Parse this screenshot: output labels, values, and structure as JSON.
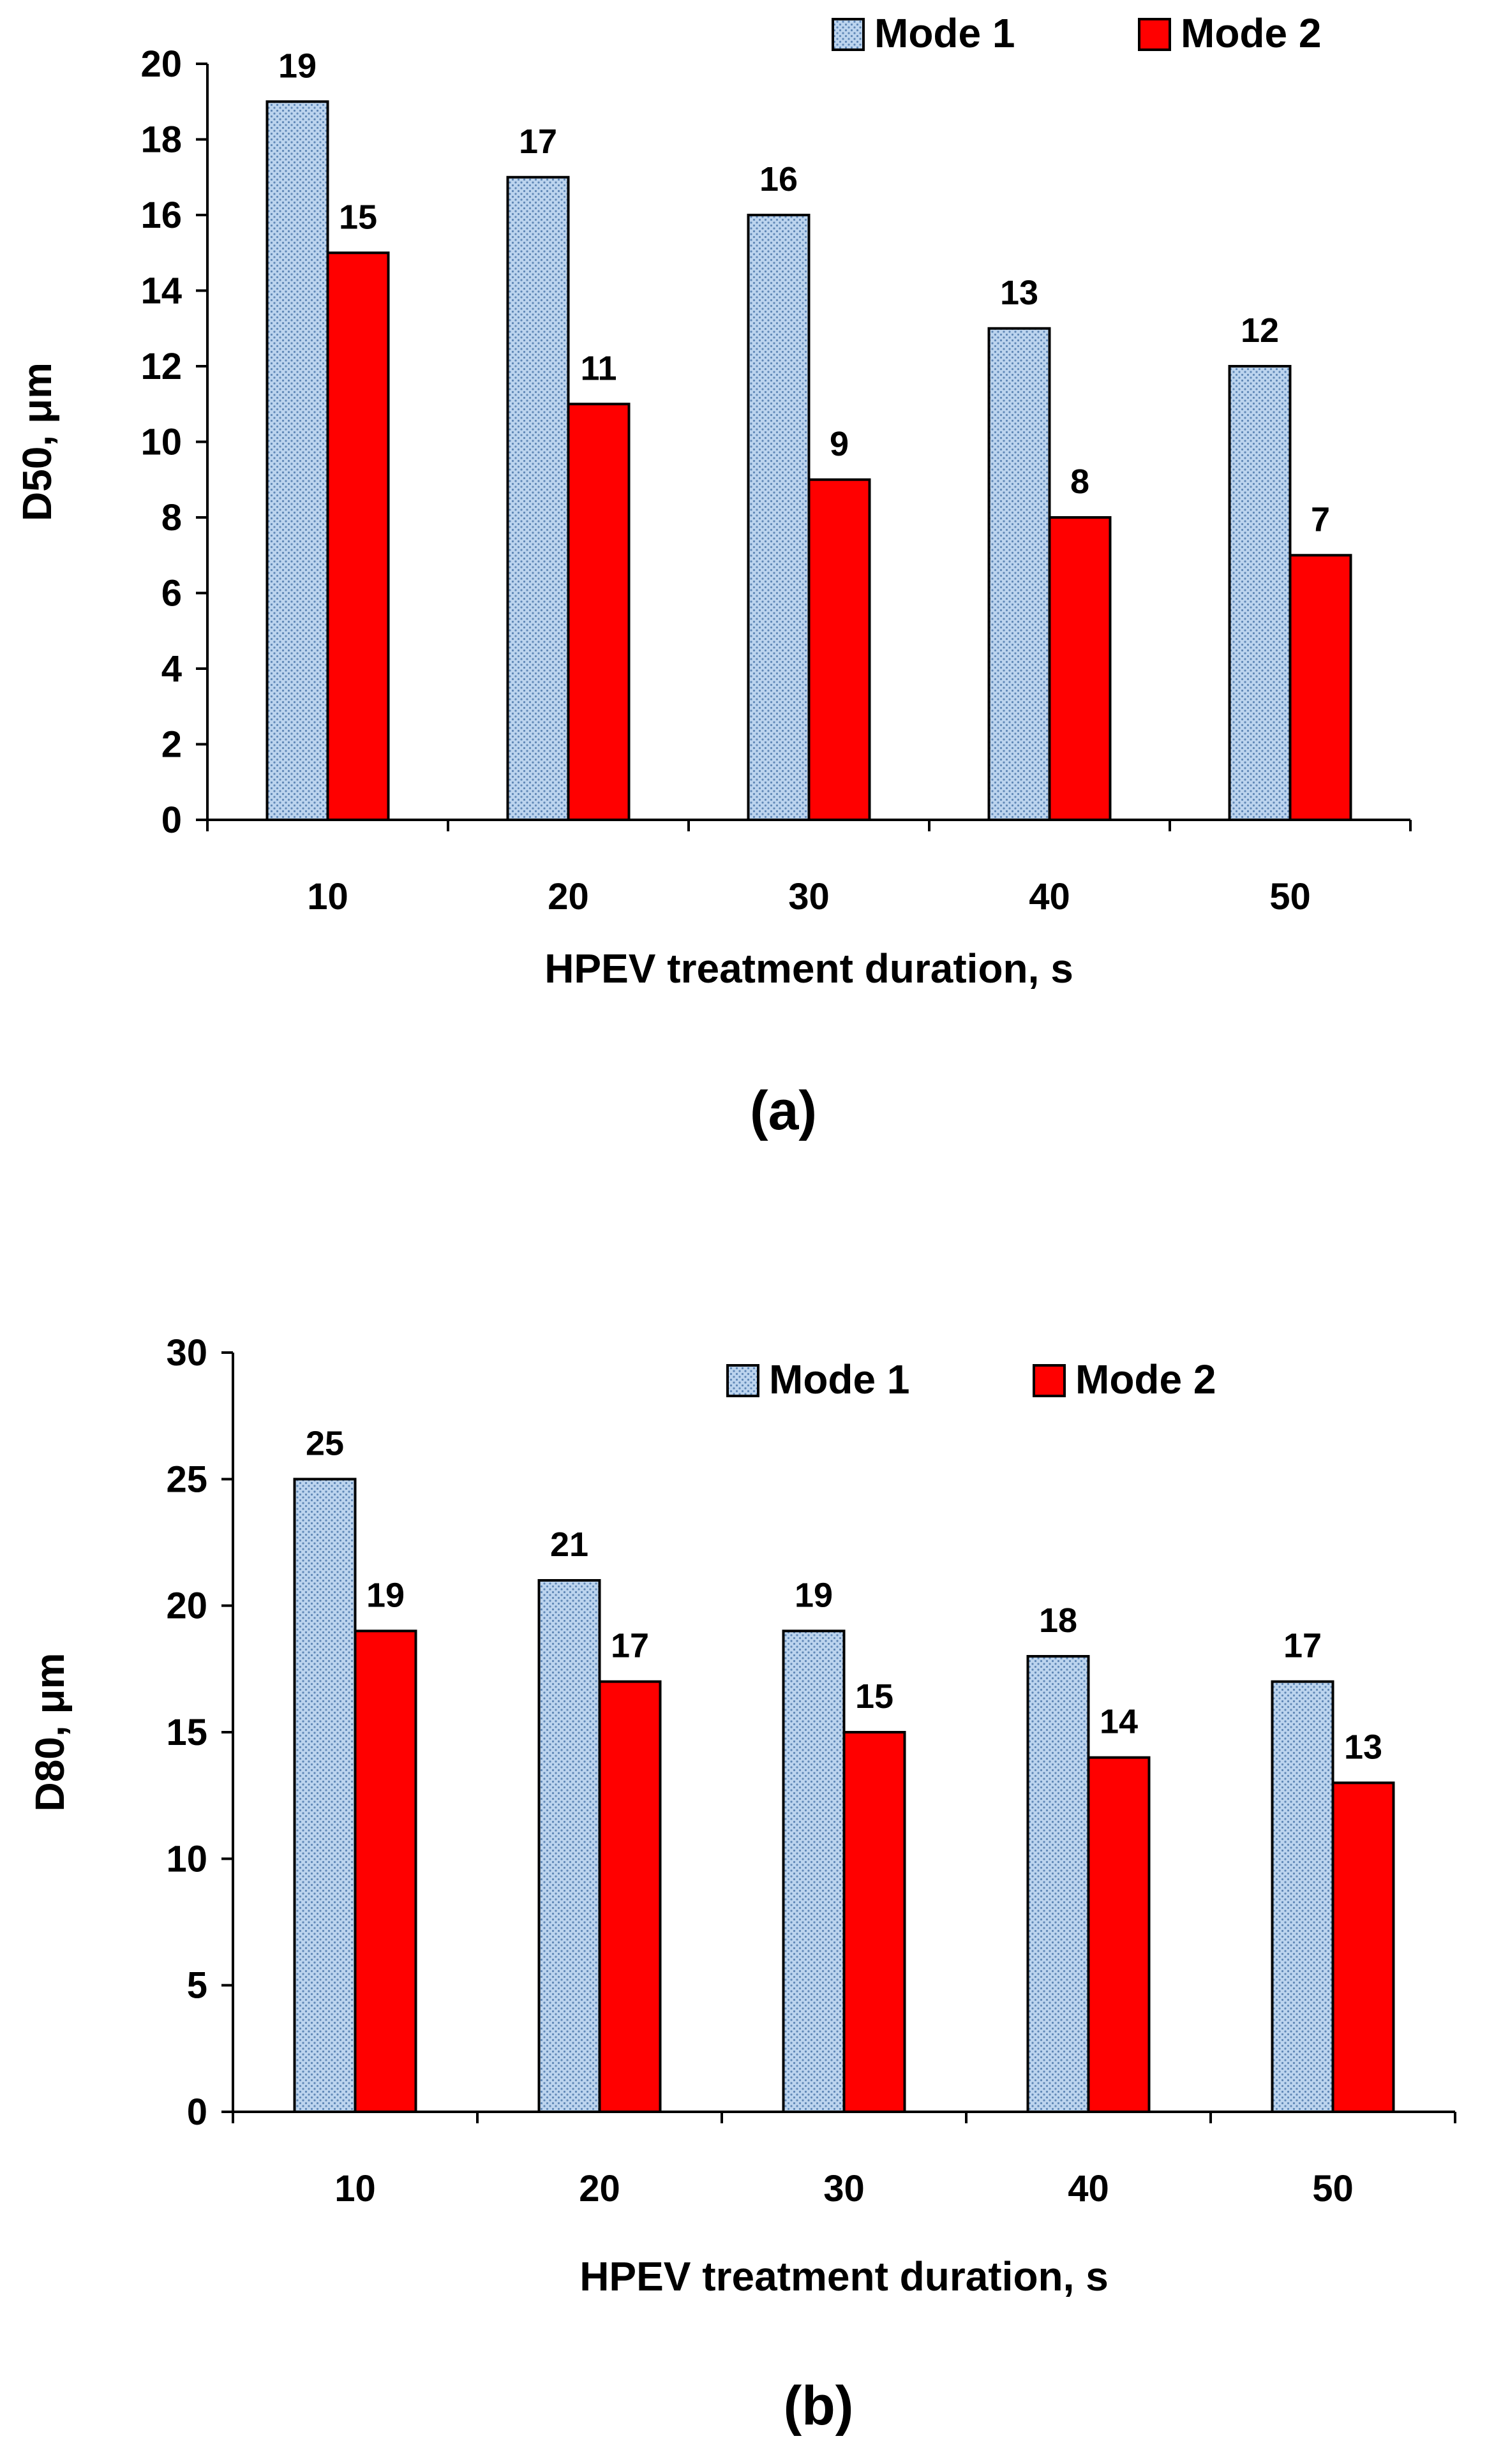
{
  "colors": {
    "mode1": "#bcd4ee",
    "mode1_dots": "#5f87b6",
    "mode2": "#ff0000",
    "stroke": "#000000"
  },
  "chart_data": [
    {
      "type": "bar",
      "panel_label": "(a)",
      "categories": [
        "10",
        "20",
        "30",
        "40",
        "50"
      ],
      "series": [
        {
          "name": "Mode 1",
          "values": [
            19,
            17,
            16,
            13,
            12
          ]
        },
        {
          "name": "Mode 2",
          "values": [
            15,
            11,
            9,
            8,
            7
          ]
        }
      ],
      "xlabel": "HPEV treatment duration, s",
      "ylabel": "D50, μm",
      "ylim": [
        0,
        20
      ],
      "yticks": [
        0,
        2,
        4,
        6,
        8,
        10,
        12,
        14,
        16,
        18,
        20
      ],
      "legend": "top-right",
      "grid": false
    },
    {
      "type": "bar",
      "panel_label": "(b)",
      "categories": [
        "10",
        "20",
        "30",
        "40",
        "50"
      ],
      "series": [
        {
          "name": "Mode 1",
          "values": [
            25,
            21,
            19,
            18,
            17
          ]
        },
        {
          "name": "Mode 2",
          "values": [
            19,
            17,
            15,
            14,
            13
          ]
        }
      ],
      "xlabel": "HPEV treatment duration, s",
      "ylabel": "D80, μm",
      "ylim": [
        0,
        30
      ],
      "yticks": [
        0,
        5,
        10,
        15,
        20,
        25,
        30
      ],
      "legend": "top-right",
      "grid": false
    }
  ]
}
